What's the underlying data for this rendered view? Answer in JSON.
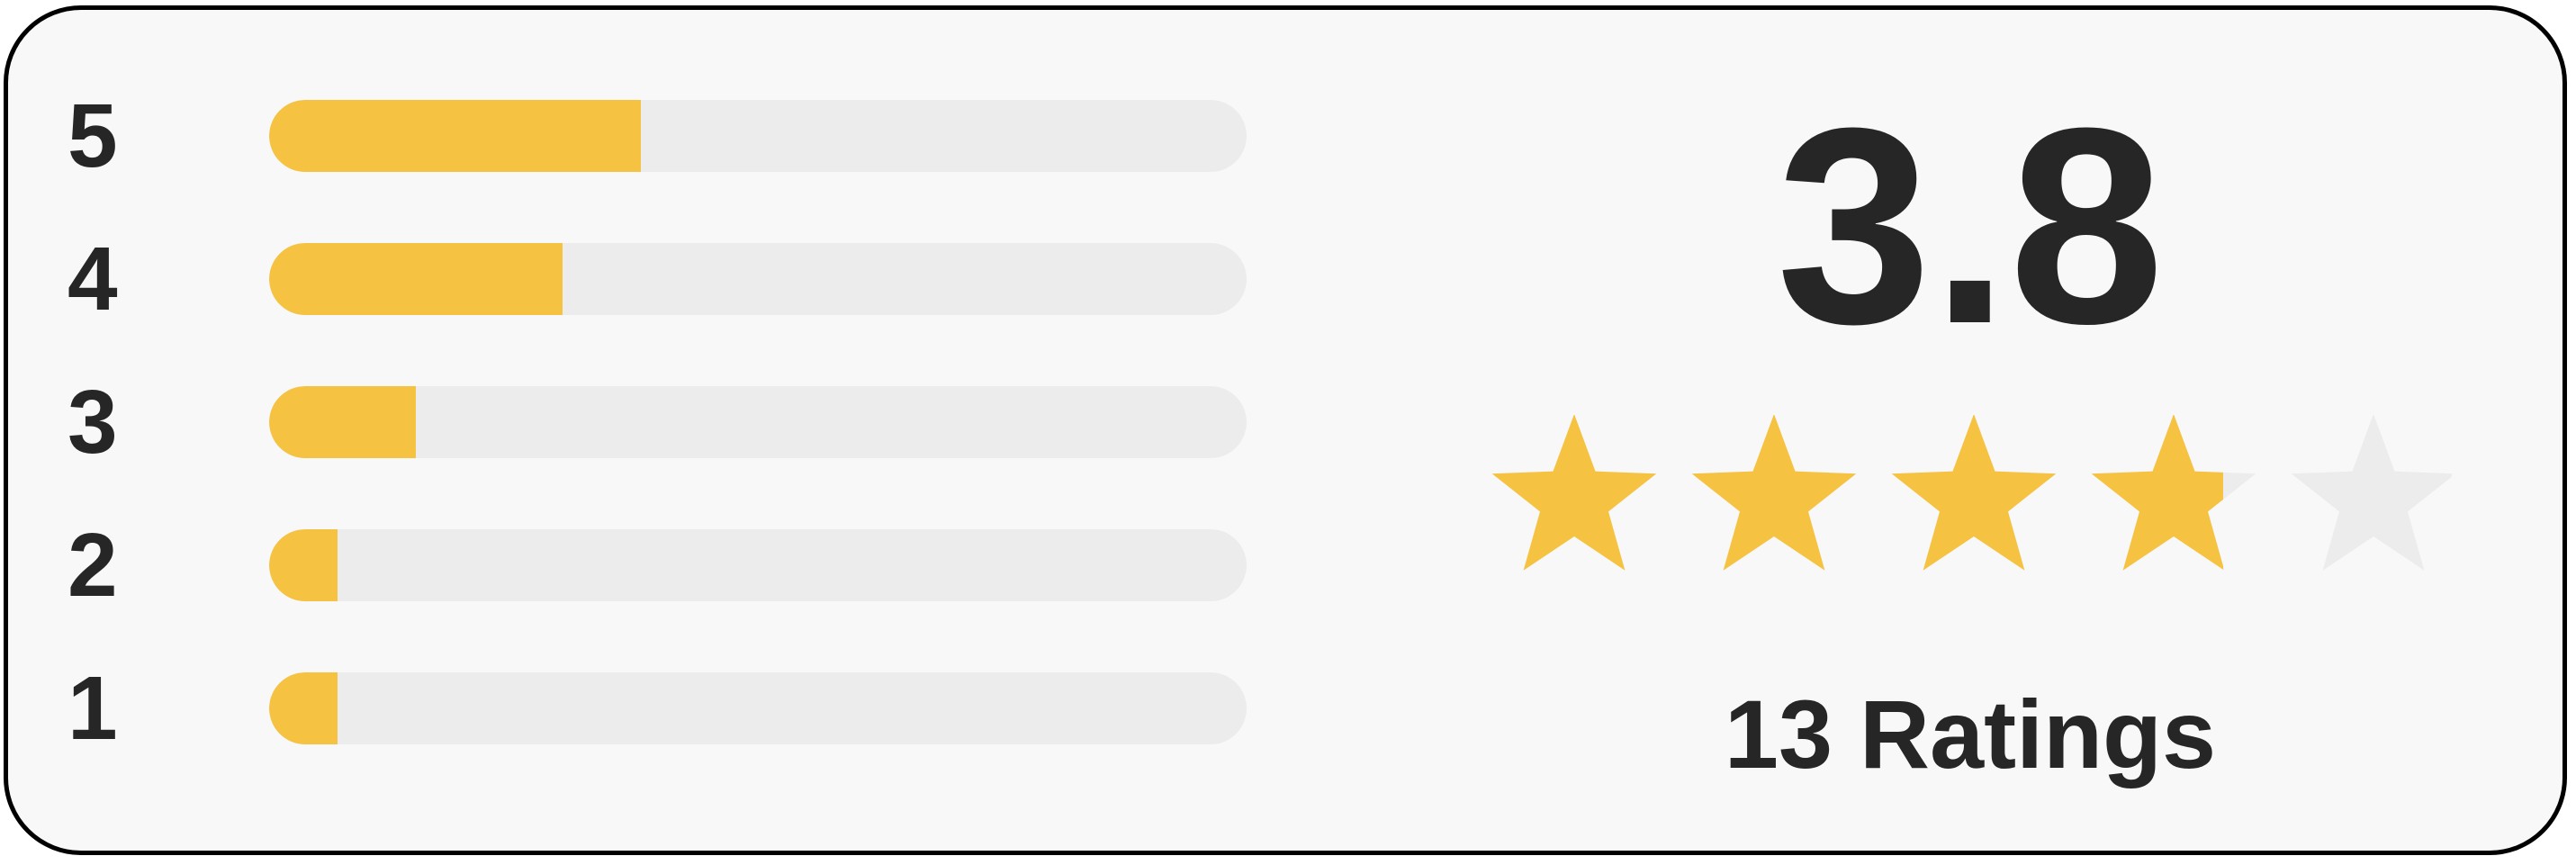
{
  "rating_summary": {
    "average": "3.8",
    "average_value": 3.8,
    "max_stars": 5,
    "count_label": "13 Ratings",
    "breakdown": [
      {
        "label": "5",
        "fraction": 0.38
      },
      {
        "label": "4",
        "fraction": 0.3
      },
      {
        "label": "3",
        "fraction": 0.15
      },
      {
        "label": "2",
        "fraction": 0.07
      },
      {
        "label": "1",
        "fraction": 0.07
      }
    ]
  },
  "colors": {
    "accent": "#f5c242",
    "track": "#ececec",
    "star_empty": "#ececec",
    "text": "#262626",
    "card_background": "#f8f8f8",
    "border": "#000000"
  },
  "icons": {
    "star": "star-icon"
  }
}
